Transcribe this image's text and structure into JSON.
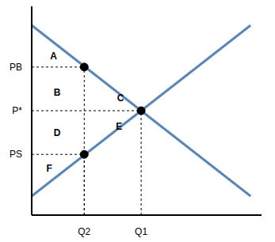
{
  "chart_data": {
    "type": "line",
    "x": [
      0,
      10
    ],
    "series": [
      {
        "color": "#5b87b8",
        "values": [
          10,
          1
        ]
      },
      {
        "color": "#5b87b8",
        "values": [
          1,
          10
        ]
      }
    ],
    "xlim": [
      0,
      10.5
    ],
    "ylim": [
      0,
      11
    ],
    "xticks": [
      {
        "value": 2.4,
        "label": "Q2"
      },
      {
        "value": 5,
        "label": "Q1"
      }
    ],
    "yticks": [
      {
        "value": 3.2,
        "label": "PS"
      },
      {
        "value": 5.5,
        "label": "P*"
      },
      {
        "value": 7.8,
        "label": "PB"
      }
    ],
    "points": [
      {
        "x": 2.4,
        "y": 7.8
      },
      {
        "x": 5,
        "y": 5.5
      },
      {
        "x": 2.4,
        "y": 3.2
      }
    ],
    "annotations": [
      {
        "text": "A",
        "x": 1.0,
        "y": 8.4
      },
      {
        "text": "B",
        "x": 1.16,
        "y": 6.46
      },
      {
        "text": "C",
        "x": 4.06,
        "y": 6.17
      },
      {
        "text": "D",
        "x": 1.16,
        "y": 4.33
      },
      {
        "text": "E",
        "x": 3.99,
        "y": 4.67
      },
      {
        "text": "F",
        "x": 0.8,
        "y": 2.46
      }
    ],
    "grid": false
  }
}
